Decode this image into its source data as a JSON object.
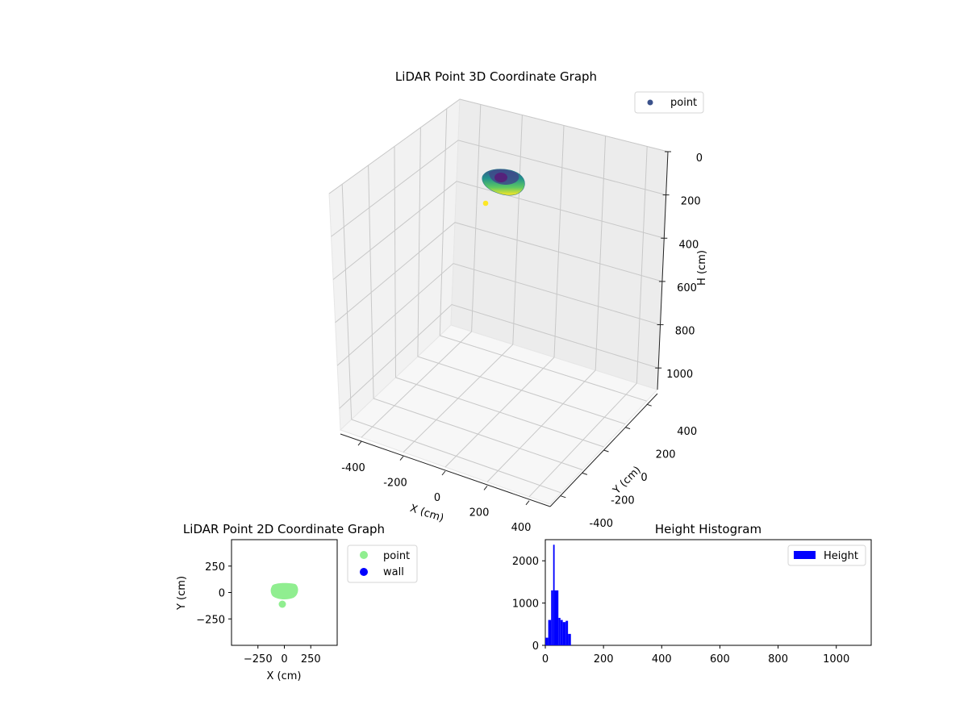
{
  "chart_data": [
    {
      "type": "scatter3d",
      "title": "LiDAR Point 3D Coordinate Graph",
      "xlabel": "X (cm)",
      "ylabel": "Y (cm)",
      "zlabel": "H (cm)",
      "xlim": [
        -500,
        500
      ],
      "ylim": [
        -500,
        500
      ],
      "zlim": [
        0,
        1100
      ],
      "z_inverted": true,
      "xticks": [
        -400,
        -200,
        0,
        200,
        400
      ],
      "yticks": [
        -400,
        -200,
        0,
        200,
        400
      ],
      "zticks": [
        0,
        200,
        400,
        600,
        800,
        1000
      ],
      "legend": {
        "entries": [
          "point"
        ],
        "placement": "top-right"
      },
      "colormap": "viridis",
      "series": [
        {
          "name": "point",
          "color": "#3b528b",
          "cluster": {
            "x_range": [
              -50,
              100
            ],
            "y_range": [
              -50,
              60
            ],
            "h_range": [
              0,
              90
            ]
          },
          "outlier": {
            "x": -30,
            "y": -100,
            "h": 140
          }
        }
      ],
      "grid": true
    },
    {
      "type": "scatter",
      "title": "LiDAR Point 2D Coordinate Graph",
      "xlabel": "X (cm)",
      "ylabel": "Y (cm)",
      "xlim": [
        -500,
        500
      ],
      "ylim": [
        -500,
        500
      ],
      "xticks": [
        -250,
        0,
        250
      ],
      "yticks": [
        -250,
        0,
        250
      ],
      "legend": {
        "entries": [
          "point",
          "wall"
        ],
        "placement": "outside-right"
      },
      "series": [
        {
          "name": "point",
          "color": "#90ee90",
          "cluster": {
            "x_range": [
              -130,
              110
            ],
            "y_range": [
              -60,
              75
            ]
          },
          "outlier": {
            "x": -30,
            "y": -100
          }
        },
        {
          "name": "wall",
          "color": "#0000ff",
          "points": []
        }
      ],
      "grid": false
    },
    {
      "type": "bar",
      "title": "Height Histogram",
      "xlabel": "",
      "ylabel": "",
      "xlim": [
        0,
        1120
      ],
      "ylim": [
        0,
        2500
      ],
      "xticks": [
        0,
        200,
        400,
        600,
        800,
        1000
      ],
      "yticks": [
        0,
        1000,
        2000
      ],
      "legend": {
        "entries": [
          "Height"
        ],
        "placement": "top-right"
      },
      "series": [
        {
          "name": "Height",
          "color": "#0000ff",
          "bins": [
            {
              "x0": 0,
              "x1": 10,
              "count": 180
            },
            {
              "x0": 10,
              "x1": 20,
              "count": 600
            },
            {
              "x0": 20,
              "x1": 27,
              "count": 1300
            },
            {
              "x0": 27,
              "x1": 32,
              "count": 2380
            },
            {
              "x0": 32,
              "x1": 45,
              "count": 1300
            },
            {
              "x0": 45,
              "x1": 52,
              "count": 650
            },
            {
              "x0": 52,
              "x1": 60,
              "count": 600
            },
            {
              "x0": 60,
              "x1": 70,
              "count": 550
            },
            {
              "x0": 70,
              "x1": 78,
              "count": 580
            },
            {
              "x0": 78,
              "x1": 88,
              "count": 270
            }
          ]
        }
      ],
      "grid": false
    }
  ]
}
